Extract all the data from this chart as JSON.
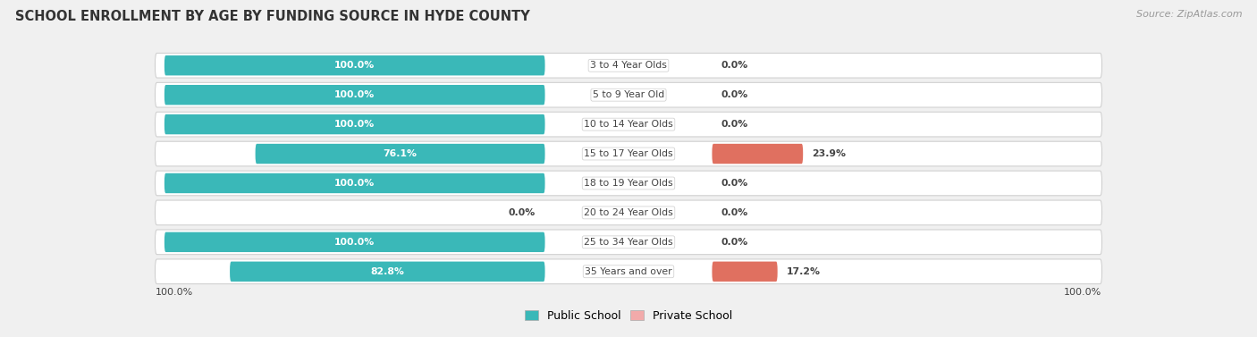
{
  "title": "SCHOOL ENROLLMENT BY AGE BY FUNDING SOURCE IN HYDE COUNTY",
  "source": "Source: ZipAtlas.com",
  "categories": [
    "3 to 4 Year Olds",
    "5 to 9 Year Old",
    "10 to 14 Year Olds",
    "15 to 17 Year Olds",
    "18 to 19 Year Olds",
    "20 to 24 Year Olds",
    "25 to 34 Year Olds",
    "35 Years and over"
  ],
  "public_pct": [
    100.0,
    100.0,
    100.0,
    76.1,
    100.0,
    0.0,
    100.0,
    82.8
  ],
  "private_pct": [
    0.0,
    0.0,
    0.0,
    23.9,
    0.0,
    0.0,
    0.0,
    17.2
  ],
  "public_color": "#3ab8b8",
  "private_color_low": "#f2aaaa",
  "private_color_high": "#e07060",
  "label_white": "#ffffff",
  "label_dark": "#444444",
  "title_color": "#333333",
  "source_color": "#999999",
  "legend_public_color": "#3ab8b8",
  "legend_private_color": "#f2aaaa",
  "bg_color": "#f0f0f0",
  "row_bg_color": "#ffffff",
  "row_edge_color": "#cccccc",
  "axis_label_left": "100.0%",
  "axis_label_right": "100.0%"
}
